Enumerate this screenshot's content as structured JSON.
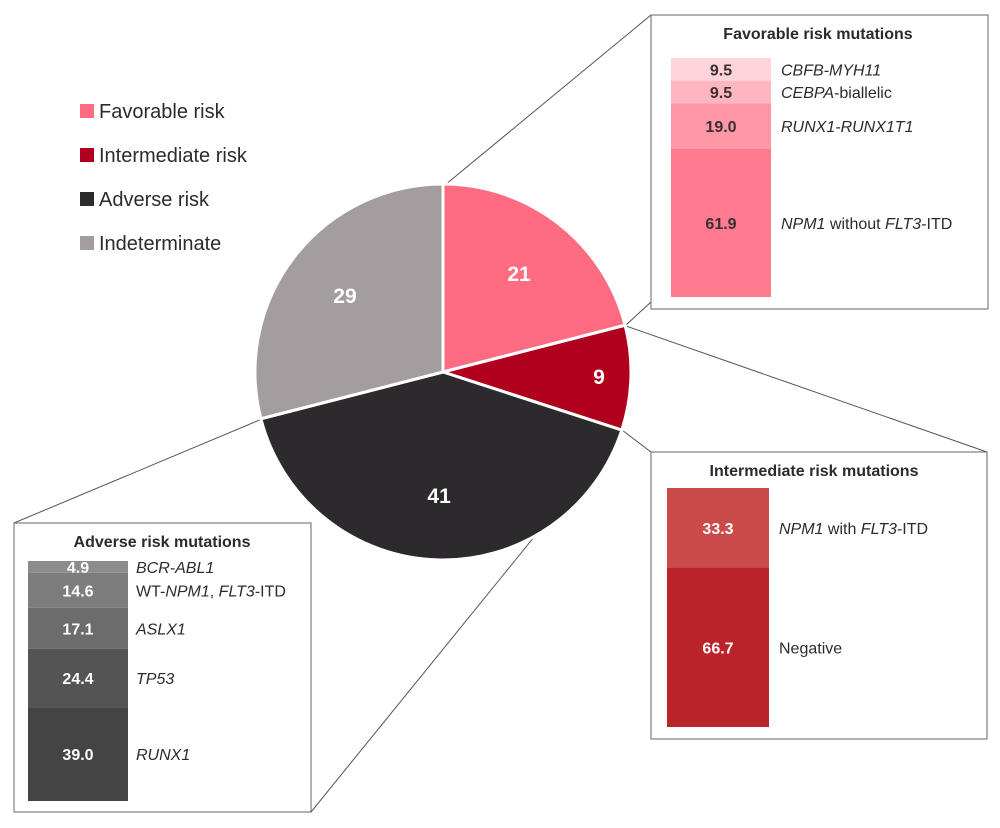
{
  "chart_data": {
    "type": "pie",
    "title": "",
    "slices": [
      {
        "name": "Favorable risk",
        "value": 21,
        "color": "#ff6b81"
      },
      {
        "name": "Intermediate risk",
        "value": 9,
        "color": "#b0001e"
      },
      {
        "name": "Adverse risk",
        "value": 41,
        "color": "#2d2a2d"
      },
      {
        "name": "Indeterminate",
        "value": 29,
        "color": "#a39da0"
      }
    ],
    "legend_position": "top-left",
    "breakdowns": [
      {
        "title": "Favorable risk mutations",
        "slice": "Favorable risk",
        "type": "stacked-bar",
        "value_color": "#3a2f31",
        "segments": [
          {
            "value": "9.5",
            "color": "#ffd3da",
            "label": [
              {
                "t": "CBFB-MYH11",
                "i": true
              }
            ]
          },
          {
            "value": "9.5",
            "color": "#ffb6c1",
            "label": [
              {
                "t": "CEBPA",
                "i": true
              },
              {
                "t": "-biallelic",
                "i": false
              }
            ]
          },
          {
            "value": "19.0",
            "color": "#ff97a7",
            "label": [
              {
                "t": "RUNX1-RUNX1T1",
                "i": true
              }
            ]
          },
          {
            "value": "61.9",
            "color": "#ff7a8e",
            "label": [
              {
                "t": "NPM1",
                "i": true
              },
              {
                "t": " without ",
                "i": false
              },
              {
                "t": "FLT3",
                "i": true
              },
              {
                "t": "-ITD",
                "i": false
              }
            ]
          }
        ]
      },
      {
        "title": "Intermediate risk mutations",
        "slice": "Intermediate risk",
        "type": "stacked-bar",
        "value_color": "#ffffff",
        "segments": [
          {
            "value": "33.3",
            "color": "#cb4a4a",
            "label": [
              {
                "t": "NPM1",
                "i": true
              },
              {
                "t": " with ",
                "i": false
              },
              {
                "t": "FLT3",
                "i": true
              },
              {
                "t": "-ITD",
                "i": false
              }
            ]
          },
          {
            "value": "66.7",
            "color": "#bb232a",
            "label": [
              {
                "t": "Negative",
                "i": false
              }
            ]
          }
        ]
      },
      {
        "title": "Adverse risk mutations",
        "slice": "Adverse risk",
        "type": "stacked-bar",
        "value_color": "#ffffff",
        "segments": [
          {
            "value": "4.9",
            "color": "#8c8c8c",
            "label": [
              {
                "t": "BCR-ABL1",
                "i": true
              }
            ]
          },
          {
            "value": "14.6",
            "color": "#7d7d7d",
            "label": [
              {
                "t": "WT-",
                "i": false
              },
              {
                "t": "NPM1",
                "i": true
              },
              {
                "t": ", ",
                "i": false
              },
              {
                "t": "FLT3",
                "i": true
              },
              {
                "t": "-ITD",
                "i": false
              }
            ]
          },
          {
            "value": "17.1",
            "color": "#6c6c6c",
            "label": [
              {
                "t": "ASLX1",
                "i": true
              }
            ]
          },
          {
            "value": "24.4",
            "color": "#545454",
            "label": [
              {
                "t": "TP53",
                "i": true
              }
            ]
          },
          {
            "value": "39.0",
            "color": "#444444",
            "label": [
              {
                "t": "RUNX1",
                "i": true
              }
            ]
          }
        ]
      }
    ]
  }
}
